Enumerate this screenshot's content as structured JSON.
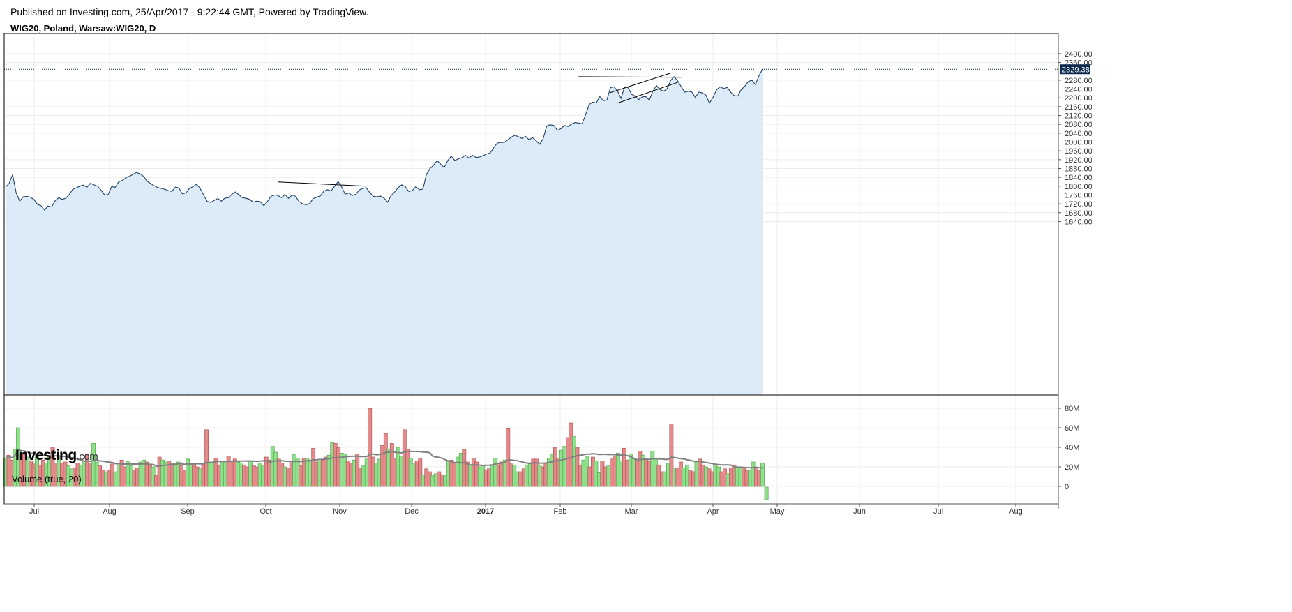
{
  "header": {
    "published": "Published on Investing.com, 25/Apr/2017 - 9:22:44 GMT, Powered by TradingView.",
    "symbol": "WIG20, Poland, Warsaw:WIG20, D"
  },
  "logo": {
    "brand": "Investing",
    "suffix": ".com"
  },
  "colors": {
    "price_line": "#1e3f66",
    "price_fill": "#dcebf8",
    "last_price_bg": "#0d2a4e",
    "volume_up": "#8ee08a",
    "volume_down": "#e48a8a",
    "volume_ma": "#808080",
    "grid": "#ececec",
    "axis": "#555555"
  },
  "chart_data": [
    {
      "type": "area",
      "panel": "price",
      "ylim": [
        1600,
        2410
      ],
      "y_ticks": [
        "2400.00",
        "2360.00",
        "2280.00",
        "2240.00",
        "2200.00",
        "2160.00",
        "2120.00",
        "2080.00",
        "2040.00",
        "2000.00",
        "1960.00",
        "1920.00",
        "1880.00",
        "1840.00",
        "1800.00",
        "1760.00",
        "1720.00",
        "1680.00",
        "1640.00"
      ],
      "last_price": "2329.38",
      "x_ticks": [
        {
          "label": "Jul",
          "bold": false
        },
        {
          "label": "Aug",
          "bold": false
        },
        {
          "label": "Sep",
          "bold": false
        },
        {
          "label": "Oct",
          "bold": false
        },
        {
          "label": "Nov",
          "bold": false
        },
        {
          "label": "Dec",
          "bold": false
        },
        {
          "label": "2017",
          "bold": true
        },
        {
          "label": "Feb",
          "bold": false
        },
        {
          "label": "Mar",
          "bold": false
        },
        {
          "label": "Apr",
          "bold": false
        },
        {
          "label": "May",
          "bold": false
        },
        {
          "label": "Jun",
          "bold": false
        },
        {
          "label": "Jul",
          "bold": false
        },
        {
          "label": "Aug",
          "bold": false
        }
      ],
      "series": [
        {
          "values": [
            1796,
            1812,
            1852,
            1770,
            1732,
            1752,
            1754,
            1750,
            1740,
            1718,
            1712,
            1692,
            1710,
            1706,
            1734,
            1748,
            1740,
            1745,
            1762,
            1786,
            1792,
            1800,
            1805,
            1795,
            1813,
            1806,
            1800,
            1782,
            1760,
            1762,
            1798,
            1795,
            1820,
            1826,
            1838,
            1845,
            1853,
            1862,
            1856,
            1845,
            1822,
            1812,
            1802,
            1794,
            1790,
            1786,
            1780,
            1776,
            1796,
            1792,
            1765,
            1770,
            1790,
            1798,
            1809,
            1790,
            1760,
            1731,
            1726,
            1736,
            1744,
            1732,
            1746,
            1748,
            1764,
            1774,
            1760,
            1748,
            1745,
            1740,
            1728,
            1732,
            1730,
            1712,
            1730,
            1754,
            1760,
            1758,
            1748,
            1762,
            1745,
            1760,
            1754,
            1730,
            1720,
            1716,
            1722,
            1744,
            1750,
            1756,
            1778,
            1784,
            1778,
            1799,
            1821,
            1797,
            1764,
            1769,
            1758,
            1763,
            1783,
            1790,
            1793,
            1770,
            1754,
            1752,
            1755,
            1746,
            1727,
            1758,
            1774,
            1794,
            1806,
            1798,
            1776,
            1780,
            1798,
            1784,
            1787,
            1854,
            1880,
            1895,
            1916,
            1900,
            1884,
            1916,
            1936,
            1916,
            1924,
            1929,
            1940,
            1927,
            1940,
            1930,
            1932,
            1938,
            1946,
            1950,
            1974,
            1995,
            1998,
            1998,
            2010,
            2022,
            2030,
            2024,
            2016,
            2026,
            2010,
            2020,
            2005,
            1990,
            2016,
            2073,
            2078,
            2075,
            2053,
            2060,
            2075,
            2070,
            2081,
            2088,
            2086,
            2082,
            2124,
            2170,
            2180,
            2177,
            2206,
            2187,
            2190,
            2246,
            2250,
            2232,
            2197,
            2250,
            2246,
            2216,
            2208,
            2192,
            2204,
            2206,
            2190,
            2230,
            2256,
            2238,
            2230,
            2240,
            2278,
            2296,
            2277,
            2251,
            2226,
            2230,
            2227,
            2202,
            2226,
            2222,
            2212,
            2176,
            2202,
            2236,
            2250,
            2242,
            2248,
            2226,
            2210,
            2208,
            2238,
            2252,
            2274,
            2280,
            2260,
            2300,
            2330
          ]
        }
      ],
      "annotations": [
        {
          "type": "trendline",
          "from": [
            77,
            1819
          ],
          "to": [
            102,
            1800
          ]
        },
        {
          "type": "trendline",
          "from": [
            162,
            2296
          ],
          "to": [
            191,
            2293
          ]
        },
        {
          "type": "trendline",
          "from": [
            171,
            2224
          ],
          "to": [
            188,
            2312
          ]
        },
        {
          "type": "trendline",
          "from": [
            173,
            2176
          ],
          "to": [
            190,
            2270
          ]
        }
      ]
    },
    {
      "type": "bar",
      "panel": "volume",
      "title": "Volume (true, 20)",
      "ylim": [
        -3000000,
        90000000
      ],
      "y_ticks": [
        "80M",
        "60M",
        "40M",
        "20M",
        "0"
      ],
      "values": [
        29,
        32,
        27,
        38,
        60,
        34,
        33,
        30,
        26,
        23,
        33,
        22,
        27,
        24,
        30,
        40,
        23,
        30,
        24,
        25,
        21,
        18,
        19,
        24,
        22,
        26,
        33,
        24,
        44,
        25,
        21,
        17,
        15,
        16,
        23,
        15,
        22,
        27,
        20,
        26,
        21,
        17,
        19,
        25,
        27,
        25,
        23,
        20,
        11,
        30,
        27,
        25,
        26,
        24,
        24,
        25,
        21,
        16,
        28,
        24,
        24,
        20,
        18,
        24,
        58,
        24,
        25,
        29,
        22,
        26,
        24,
        31,
        26,
        28,
        25,
        24,
        22,
        20,
        26,
        21,
        20,
        24,
        22,
        30,
        27,
        41,
        35,
        28,
        24,
        20,
        19,
        24,
        33,
        28,
        21,
        29,
        29,
        27,
        39,
        25,
        26,
        27,
        30,
        32,
        45,
        44,
        40,
        34,
        33,
        26,
        24,
        27,
        33,
        19,
        21,
        28,
        80,
        30,
        24,
        28,
        42,
        54,
        38,
        44,
        29,
        40,
        31,
        58,
        38,
        29,
        23,
        26,
        29,
        12,
        18,
        15,
        11,
        13,
        15,
        12,
        11,
        26,
        27,
        24,
        30,
        34,
        38,
        25,
        22,
        29,
        25,
        20,
        21,
        17,
        19,
        22,
        29,
        22,
        25,
        27,
        59,
        23,
        22,
        15,
        15,
        18,
        22,
        23,
        28,
        28,
        22,
        20,
        24,
        29,
        33,
        40,
        29,
        37,
        41,
        50,
        65,
        51,
        40,
        22,
        27,
        31,
        20,
        30,
        26,
        14,
        26,
        20,
        21,
        28,
        31,
        34,
        26,
        39,
        27,
        33,
        28,
        27,
        36,
        32,
        28,
        26,
        36,
        28,
        22,
        15,
        15,
        24,
        64,
        19,
        19,
        25,
        19,
        22,
        16,
        15,
        25,
        28,
        22,
        20,
        18,
        15,
        23,
        20,
        15,
        18,
        13,
        19,
        22,
        20,
        19,
        19,
        16,
        16,
        25,
        18,
        16,
        24
      ],
      "directions": "udduudduddudduuddudduudduudduuddudduudduudduuddudduudduudduuddudduudduuddduuddudduudduuddudduudduuddudduudduuddudduudduuddudduudduuddudduudduudduuddudduudduuddudduudduuddudduudduuddudduudduuddudduudduuddudduudduud"
    }
  ]
}
